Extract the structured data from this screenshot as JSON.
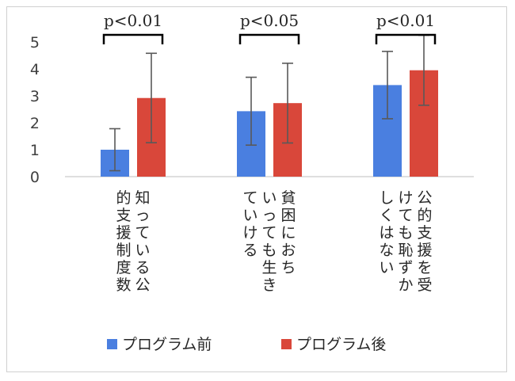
{
  "chart_data": {
    "type": "bar",
    "title": "",
    "xlabel": "",
    "ylabel": "",
    "ylim": [
      0,
      5
    ],
    "yticks": [
      0,
      1,
      2,
      3,
      4,
      5
    ],
    "grid": false,
    "legend_position": "bottom",
    "categories": [
      [
        "知っている公",
        "的支援制度数"
      ],
      [
        "貧困におち",
        "いっても生き",
        "ていける"
      ],
      [
        "公的支援を受",
        "けても恥ずか",
        "しくはない"
      ]
    ],
    "series": [
      {
        "name": "プログラム前",
        "color": "#4a7fe0",
        "values": [
          1.0,
          2.43,
          3.4
        ],
        "error": [
          0.78,
          1.26,
          1.25
        ]
      },
      {
        "name": "プログラム後",
        "color": "#d9473a",
        "values": [
          2.92,
          2.73,
          3.95
        ],
        "error": [
          1.66,
          1.48,
          1.3
        ]
      }
    ],
    "significance": [
      "p<0.01",
      "p<0.05",
      "p<0.01"
    ]
  }
}
